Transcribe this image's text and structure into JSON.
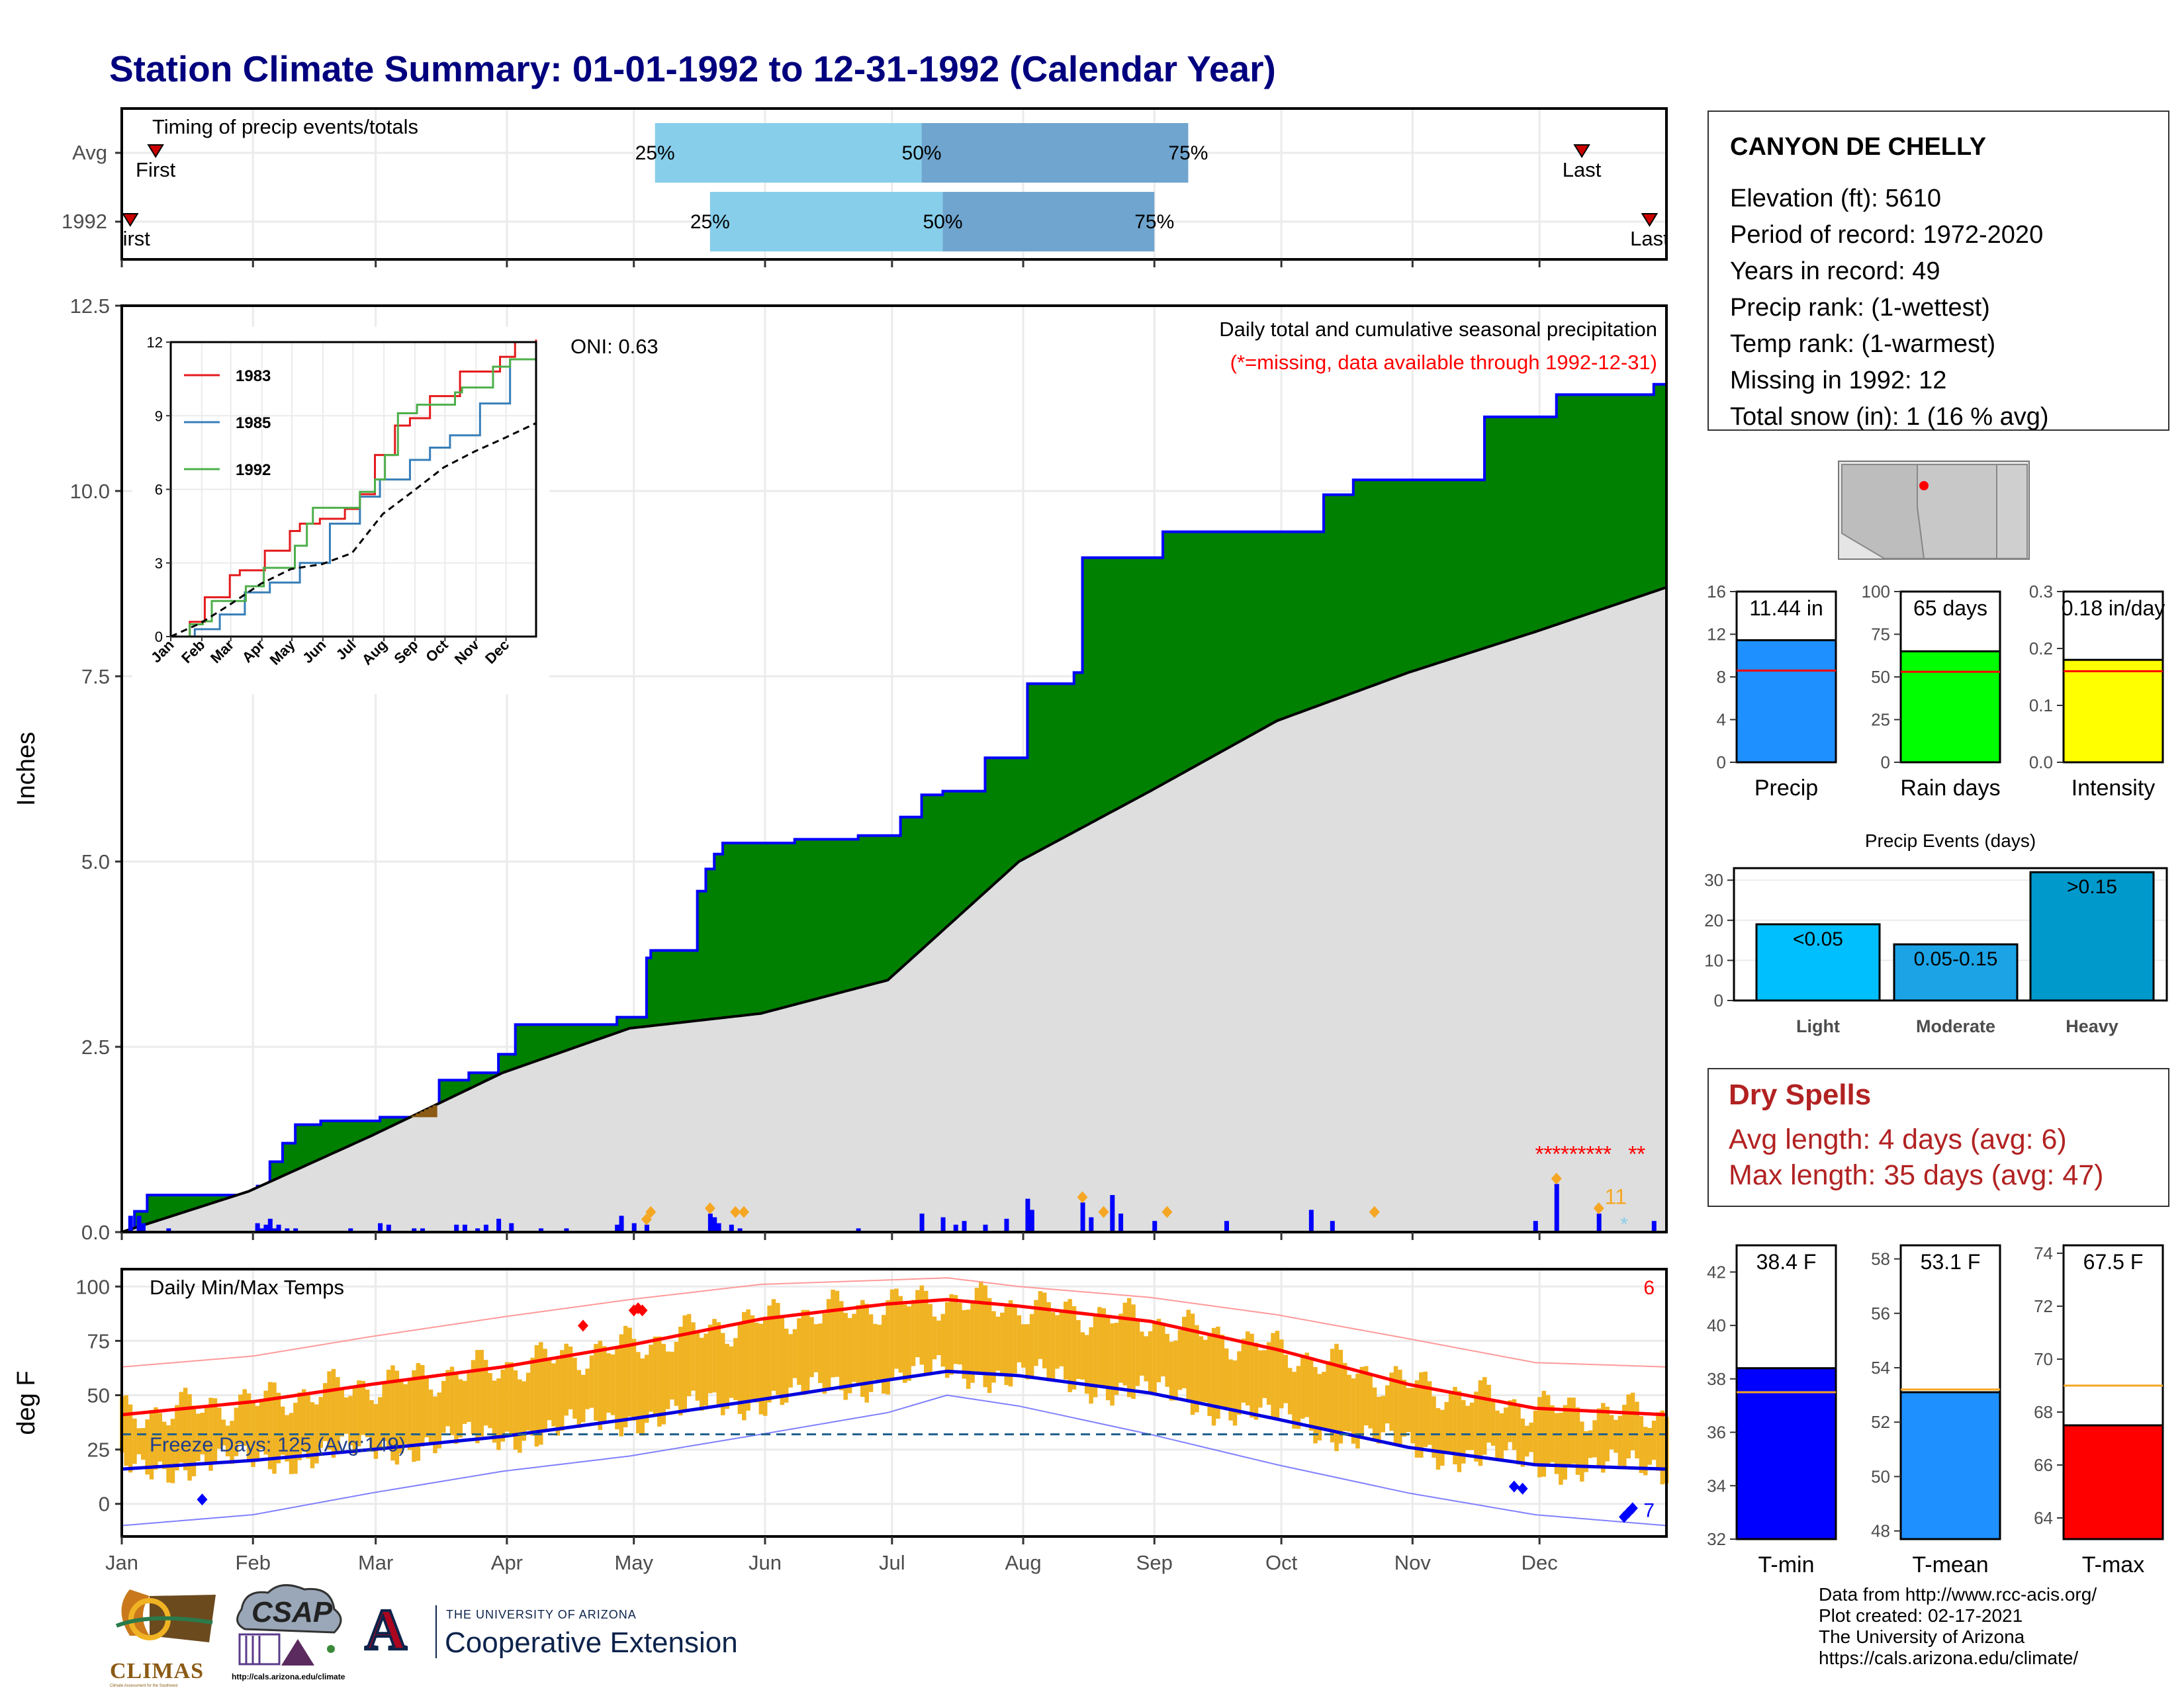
{
  "title": "Station Climate Summary: 01-01-1992 to 12-31-1992 (Calendar Year)",
  "station": {
    "name": "CANYON DE CHELLY",
    "lines": [
      "Elevation (ft): 5610",
      "Period of record: 1972-2020",
      "Years in record: 49",
      "Precip rank:  (1-wettest)",
      "Temp rank:  (1-warmest)",
      "Missing in 1992: 12",
      "Total snow (in): 1 (16 % avg)"
    ]
  },
  "dry_spells": {
    "title": "Dry Spells",
    "avg": "Avg length: 4 days (avg: 6)",
    "max": "Max length: 35 days (avg: 47)"
  },
  "footer": [
    "Data from http://www.rcc-acis.org/",
    "Plot created: 02-17-2021",
    "The University of Arizona",
    "https://cals.arizona.edu/climate/"
  ],
  "logos": {
    "climas": "CLIMAS",
    "climas_sub": "Climate Assessment for the Southwest",
    "csap": "CSAP",
    "csap_url": "http://cals.arizona.edu/climate",
    "ua_small": "THE UNIVERSITY OF ARIZONA",
    "ua_big": "Cooperative Extension",
    "ua_letter": "A"
  },
  "colors": {
    "title": "#00007f",
    "precip_green": "#008000",
    "normal_grey": "#dedede",
    "precip_blue": "#0000ff",
    "q_light": "#87ceeb",
    "q_dark": "#6fa5ce",
    "temp_bar": "#f0b323",
    "tmax_line": "#ff0000",
    "tmin_line": "#0000dd",
    "dry_red": "#b22222"
  },
  "chart_data": [
    {
      "id": "timing",
      "type": "bar",
      "title": "Timing of precip events/totals",
      "rows": [
        {
          "label": "Avg",
          "first": "First",
          "last": "Last",
          "q25": "25%",
          "q50": "50%",
          "q75": "75%",
          "q25_doy": 127,
          "q50_doy": 190,
          "q75_doy": 253,
          "first_doy": 9,
          "last_doy": 346
        },
        {
          "label": "1992",
          "first": "First",
          "last": "Last",
          "q25": "25%",
          "q50": "50%",
          "q75": "75%",
          "q25_doy": 140,
          "q50_doy": 195,
          "q75_doy": 245,
          "first_doy": 3,
          "last_doy": 362
        }
      ]
    },
    {
      "id": "precip",
      "type": "area",
      "title": "Daily total and cumulative seasonal precipitation",
      "subtitle": "(*=missing, data available through 1992-12-31)",
      "ylabel": "Inches",
      "ylim": [
        0,
        12.5
      ],
      "yticks": [
        "0.0",
        "2.5",
        "5.0",
        "7.5",
        "10.0",
        "12.5"
      ],
      "oni": "ONI: 0.63",
      "missing_count": "11",
      "cumulative_1992": {
        "doy": [
          1,
          4,
          7,
          20,
          33,
          36,
          39,
          42,
          48,
          55,
          62,
          69,
          76,
          83,
          90,
          94,
          100,
          110,
          118,
          125,
          126,
          132,
          137,
          139,
          141,
          143,
          150,
          160,
          175,
          185,
          190,
          195,
          205,
          215,
          226,
          228,
          236,
          247,
          260,
          285,
          292,
          320,
          323,
          340,
          353,
          363,
          366
        ],
        "value": [
          0.0,
          0.28,
          0.5,
          0.5,
          0.62,
          0.95,
          1.2,
          1.45,
          1.5,
          1.5,
          1.55,
          1.55,
          2.05,
          2.15,
          2.4,
          2.8,
          2.8,
          2.8,
          2.9,
          3.7,
          3.8,
          3.8,
          4.6,
          4.9,
          5.1,
          5.25,
          5.25,
          5.3,
          5.35,
          5.6,
          5.9,
          5.95,
          6.4,
          7.4,
          7.55,
          9.1,
          9.1,
          9.45,
          9.45,
          9.95,
          10.15,
          10.15,
          11.0,
          11.3,
          11.3,
          11.44,
          11.44
        ]
      },
      "cumulative_normal": {
        "doy": [
          1,
          31,
          60,
          91,
          121,
          152,
          182,
          213,
          244,
          274,
          305,
          335,
          366
        ],
        "value": [
          0.0,
          0.55,
          1.3,
          2.15,
          2.75,
          2.95,
          3.4,
          5.0,
          5.95,
          6.9,
          7.55,
          8.1,
          8.7
        ]
      },
      "daily_precip": {
        "doy": [
          3,
          5,
          6,
          12,
          33,
          34,
          35,
          36,
          37,
          38,
          40,
          42,
          55,
          62,
          64,
          70,
          72,
          80,
          82,
          85,
          87,
          90,
          93,
          100,
          106,
          118,
          119,
          122,
          125,
          140,
          141,
          142,
          145,
          147,
          175,
          190,
          195,
          198,
          200,
          205,
          210,
          215,
          216,
          228,
          230,
          235,
          237,
          245,
          262,
          282,
          287,
          335,
          340,
          350,
          363
        ],
        "value": [
          0.22,
          0.22,
          0.12,
          0.05,
          0.12,
          0.05,
          0.1,
          0.18,
          0.05,
          0.1,
          0.05,
          0.05,
          0.05,
          0.12,
          0.1,
          0.05,
          0.05,
          0.1,
          0.1,
          0.05,
          0.1,
          0.18,
          0.12,
          0.05,
          0.05,
          0.1,
          0.22,
          0.12,
          0.1,
          0.25,
          0.2,
          0.12,
          0.1,
          0.05,
          0.05,
          0.25,
          0.2,
          0.1,
          0.15,
          0.1,
          0.18,
          0.45,
          0.3,
          0.4,
          0.2,
          0.5,
          0.25,
          0.15,
          0.15,
          0.3,
          0.15,
          0.15,
          0.65,
          0.25,
          0.15
        ]
      },
      "snow_marks_doy": [
        125,
        126,
        140,
        146,
        148,
        228,
        233,
        248,
        297,
        340,
        350
      ],
      "inset": {
        "type": "line",
        "ylim": [
          0,
          12
        ],
        "yticks": [
          "0",
          "3",
          "6",
          "9",
          "12"
        ],
        "xticks": [
          "Jan",
          "Feb",
          "Mar",
          "Apr",
          "May",
          "Jun",
          "Jul",
          "Aug",
          "Sep",
          "Oct",
          "Nov",
          "Dec"
        ],
        "series": [
          {
            "name": "1983",
            "color": "#e41a1c",
            "doy": [
              1,
              20,
              35,
              60,
              70,
              95,
              120,
              130,
              150,
              175,
              190,
              205,
              225,
              240,
              260,
              290,
              330,
              345,
              366
            ],
            "value": [
              0,
              0.6,
              1.6,
              2.5,
              2.7,
              3.5,
              4.3,
              4.6,
              4.8,
              5.2,
              5.8,
              7.4,
              8.6,
              8.9,
              9.8,
              10.8,
              11.4,
              12.0,
              12.1
            ]
          },
          {
            "name": "1985",
            "color": "#377eb8",
            "doy": [
              1,
              25,
              50,
              75,
              100,
              130,
              160,
              190,
              210,
              240,
              260,
              280,
              310,
              340,
              366
            ],
            "value": [
              0,
              0.3,
              0.9,
              1.8,
              2.2,
              3.0,
              4.6,
              5.7,
              6.4,
              7.2,
              7.7,
              8.2,
              9.5,
              11.3,
              12.0
            ]
          },
          {
            "name": "1992",
            "color": "#4daf4a",
            "doy": [
              1,
              20,
              33,
              42,
              76,
              94,
              125,
              137,
              143,
              190,
              205,
              215,
              228,
              247,
              285,
              292,
              323,
              340,
              366
            ],
            "value": [
              0,
              0.5,
              0.62,
              1.45,
              2.05,
              2.8,
              3.7,
              4.6,
              5.25,
              5.9,
              6.4,
              7.4,
              9.1,
              9.45,
              9.95,
              10.15,
              11.0,
              11.3,
              11.44
            ]
          },
          {
            "name": "",
            "color": "#000000",
            "doy": [
              1,
              31,
              60,
              91,
              121,
              152,
              182,
              213,
              244,
              274,
              305,
              335,
              366
            ],
            "value": [
              0.0,
              0.55,
              1.3,
              2.15,
              2.75,
              2.95,
              3.4,
              5.0,
              5.95,
              6.9,
              7.55,
              8.1,
              8.7
            ]
          }
        ]
      }
    },
    {
      "id": "temps",
      "type": "bar",
      "title": "Daily Min/Max Temps",
      "ylabel": "deg F",
      "ylim": [
        -15,
        108
      ],
      "yticks": [
        "0",
        "25",
        "50",
        "75",
        "100"
      ],
      "freeze_label": "Freeze Days: 125 (Avg:149)",
      "freeze_line": 32,
      "record_high_count": "6",
      "record_low_count": "7",
      "xticks": [
        "Jan",
        "Feb",
        "Mar",
        "Apr",
        "May",
        "Jun",
        "Jul",
        "Aug",
        "Sep",
        "Oct",
        "Nov",
        "Dec"
      ],
      "normal_max_doy": [
        1,
        32,
        60,
        91,
        121,
        152,
        182,
        196,
        213,
        244,
        274,
        305,
        335,
        366
      ],
      "normal_max": [
        41,
        47,
        55,
        63,
        73,
        85,
        92,
        94,
        91,
        84,
        71,
        55,
        44,
        41
      ],
      "normal_min": [
        16,
        20,
        25,
        31,
        39,
        48,
        57,
        61,
        59,
        51,
        39,
        26,
        18,
        16
      ],
      "record_max": [
        63,
        68,
        77,
        86,
        94,
        101,
        103,
        104,
        100,
        95,
        87,
        76,
        65,
        63
      ],
      "record_min": [
        -10,
        -5,
        5,
        15,
        22,
        32,
        42,
        50,
        45,
        32,
        18,
        5,
        -5,
        -10
      ]
    },
    {
      "id": "bars_precip",
      "type": "bar",
      "categories": [
        "Precip",
        "Rain days",
        "Intensity"
      ],
      "labels": [
        "11.44 in",
        "65 days",
        "0.18 in/day"
      ],
      "values": [
        11.44,
        65,
        0.18
      ],
      "averages": [
        8.6,
        53,
        0.16
      ],
      "ylims": [
        [
          0,
          16
        ],
        [
          0,
          100
        ],
        [
          0,
          0.3
        ]
      ],
      "yticks": [
        [
          "0",
          "4",
          "8",
          "12",
          "16"
        ],
        [
          "0",
          "25",
          "50",
          "75",
          "100"
        ],
        [
          "0.0",
          "0.1",
          "0.2",
          "0.3"
        ]
      ]
    },
    {
      "id": "precip_events",
      "type": "bar",
      "title": "Precip Events (days)",
      "categories": [
        "Light",
        "Moderate",
        "Heavy"
      ],
      "labels": [
        "<0.05",
        "0.05-0.15",
        ">0.15"
      ],
      "values": [
        19,
        14,
        32
      ],
      "ylim": [
        0,
        33
      ],
      "yticks": [
        "0",
        "10",
        "20",
        "30"
      ]
    },
    {
      "id": "bars_temp",
      "type": "bar",
      "categories": [
        "T-min",
        "T-mean",
        "T-max"
      ],
      "labels": [
        "38.4 F",
        "53.1 F",
        "67.5 F"
      ],
      "values": [
        38.4,
        53.1,
        67.5
      ],
      "averages": [
        37.5,
        53.2,
        69.0
      ],
      "ylims": [
        [
          32,
          43
        ],
        [
          47.7,
          58.5
        ],
        [
          63.2,
          74.3
        ]
      ],
      "yticks": [
        [
          "32",
          "34",
          "36",
          "38",
          "40",
          "42"
        ],
        [
          "48",
          "50",
          "52",
          "54",
          "56",
          "58"
        ],
        [
          "64",
          "66",
          "68",
          "70",
          "72",
          "74"
        ]
      ]
    }
  ]
}
